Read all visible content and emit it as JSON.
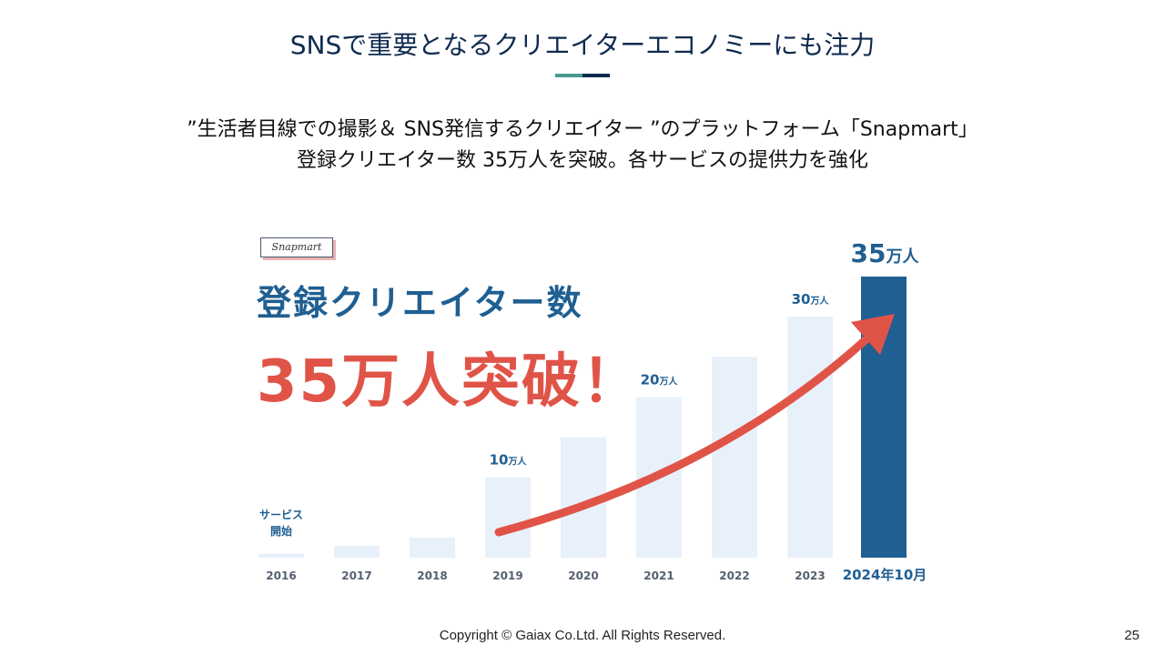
{
  "slide": {
    "title": "SNSで重要となるクリエイターエコノミーにも注力",
    "subtitle_line1": "”生活者目線での撮影＆ SNS発信するクリエイター ”のプラットフォーム「Snapmart」",
    "subtitle_line2": "登録クリエイター数 35万人を突破。各サービスの提供力を強化",
    "logo_text": "Snapmart",
    "headline_line1": "登録クリエイター数",
    "headline_line2": "35万人突破！",
    "footer": "Copyright © Gaiax Co.Ltd. All Rights Reserved.",
    "page_number": "25"
  },
  "colors": {
    "navy": "#0e2a4f",
    "teal": "#4a9a91",
    "bar_light": "#e8f1fa",
    "bar_highlight": "#1f5f92",
    "label_blue": "#1f5f92",
    "accent_red": "#e05448"
  },
  "chart_data": {
    "type": "bar",
    "categories": [
      "2016",
      "2017",
      "2018",
      "2019",
      "2020",
      "2021",
      "2022",
      "2023",
      "2024年10月"
    ],
    "values": [
      0.5,
      1.5,
      2.5,
      10,
      15,
      20,
      25,
      30,
      35
    ],
    "unit": "万人",
    "highlight_index": 8,
    "annotations": [
      {
        "index": 0,
        "text": "サービス\n開始"
      },
      {
        "index": 3,
        "value": "10",
        "unit": "万人"
      },
      {
        "index": 5,
        "value": "20",
        "unit": "万人"
      },
      {
        "index": 7,
        "value": "30",
        "unit": "万人"
      },
      {
        "index": 8,
        "value": "35",
        "unit": "万人"
      }
    ],
    "trend_arrow": "red, rising from 2019 to 2024",
    "ylim": [
      0,
      35
    ]
  }
}
